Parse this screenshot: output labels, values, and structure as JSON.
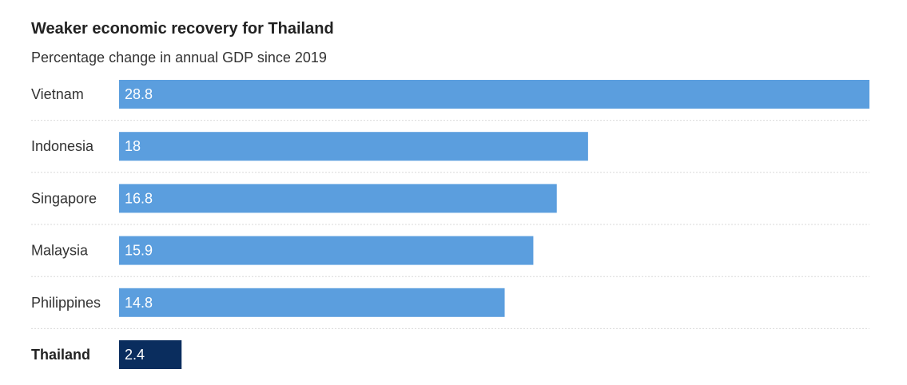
{
  "title": "Weaker economic recovery for Thailand",
  "subtitle": "Percentage change in annual GDP since 2019",
  "colors": {
    "bar": "#5b9ede",
    "highlight": "#0a2d5e",
    "bar_label": "#ffffff",
    "category_label": "#333333",
    "highlight_label": "#222222",
    "separator": "#d9d9d9"
  },
  "chart_data": {
    "type": "bar",
    "orientation": "horizontal",
    "categories": [
      "Vietnam",
      "Indonesia",
      "Singapore",
      "Malaysia",
      "Philippines",
      "Thailand"
    ],
    "values": [
      28.8,
      18,
      16.8,
      15.9,
      14.8,
      2.4
    ],
    "value_labels": [
      "28.8",
      "18",
      "16.8",
      "15.9",
      "14.8",
      "2.4"
    ],
    "highlight": "Thailand",
    "xlim": [
      0,
      28.8
    ],
    "xlabel": "",
    "ylabel": "",
    "grid": false,
    "legend": "none"
  }
}
